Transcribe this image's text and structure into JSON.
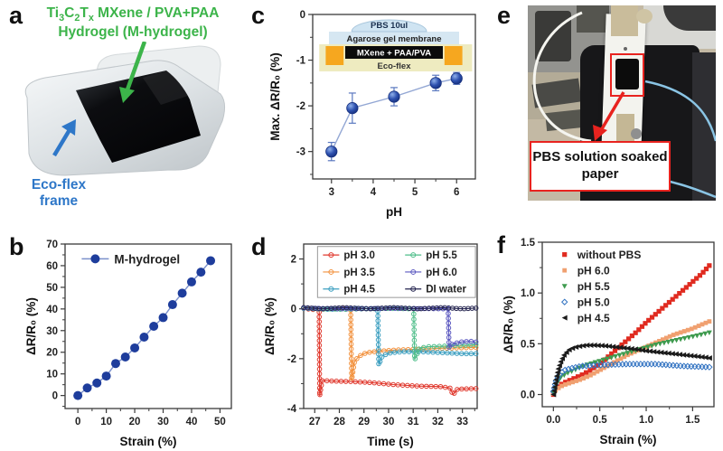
{
  "panels": {
    "a": {
      "label": "a",
      "title_line1_parts": [
        [
          "Ti",
          0
        ],
        [
          "3",
          1
        ],
        [
          "C",
          0
        ],
        [
          "2",
          1
        ],
        [
          "T",
          0
        ],
        [
          "x",
          1
        ],
        [
          " MXene / PVA+PAA",
          0
        ]
      ],
      "title_line2": "Hydrogel (M-hydrogel)",
      "title_color": "#3cb44a",
      "frame_label_line1": "Eco-flex",
      "frame_label_line2": "frame",
      "frame_color": "#2e77c8"
    },
    "b": {
      "label": "b"
    },
    "c": {
      "label": "c"
    },
    "d": {
      "label": "d"
    },
    "e": {
      "label": "e",
      "callout": "PBS solution soaked paper",
      "callout_color": "#e8231f"
    },
    "f": {
      "label": "f"
    }
  },
  "chart_data": [
    {
      "id": "b",
      "type": "line",
      "xlabel": "Strain (%)",
      "ylabel": "ΔR/R₀ (%)",
      "xlim": [
        -4.5,
        54
      ],
      "ylim": [
        -6,
        70
      ],
      "xticks": [
        0,
        10,
        20,
        30,
        40,
        50
      ],
      "yticks": [
        0,
        10,
        20,
        30,
        40,
        50,
        60,
        70
      ],
      "xminor": 5,
      "yminor": 5,
      "xfmt": 0,
      "yfmt": 0,
      "grid": false,
      "legend": {
        "style": "inline"
      },
      "series": [
        {
          "name": "M-hydrogel",
          "color": "#1e3d9c",
          "line": "#7b90cc",
          "marker": "circle",
          "msize": 5,
          "points": [
            [
              0,
              0
            ],
            [
              3.3,
              3.5
            ],
            [
              6.7,
              5.8
            ],
            [
              10,
              9
            ],
            [
              13.3,
              14.8
            ],
            [
              16.7,
              17.8
            ],
            [
              20,
              22
            ],
            [
              23.3,
              27
            ],
            [
              26.7,
              32
            ],
            [
              30,
              36
            ],
            [
              33.3,
              42
            ],
            [
              36.7,
              47.3
            ],
            [
              40,
              52.5
            ],
            [
              43.3,
              57
            ],
            [
              46.7,
              62.3
            ]
          ]
        }
      ]
    },
    {
      "id": "c",
      "type": "line",
      "xlabel": "pH",
      "ylabel": "Max. ΔR/R₀ (%)",
      "xlim": [
        2.55,
        6.45
      ],
      "ylim": [
        -3.6,
        0
      ],
      "xticks": [
        3,
        4,
        5,
        6
      ],
      "yticks": [
        0,
        -1,
        -2,
        -3
      ],
      "xminor": 0.5,
      "yminor": 0.5,
      "xfmt": 0,
      "yfmt": 0,
      "grid": false,
      "series": [
        {
          "name": "Max. response vs pH",
          "color": "#27439e",
          "line": "#93a7d4",
          "marker": "sphere",
          "msize": 6.2,
          "errcolor": "#5b79c0",
          "yerr": [
            0.2,
            0.33,
            0.2,
            0.17,
            0.13
          ],
          "points": [
            [
              3,
              -3.0
            ],
            [
              3.5,
              -2.05
            ],
            [
              4.5,
              -1.8
            ],
            [
              5.5,
              -1.5
            ],
            [
              6,
              -1.4
            ]
          ]
        }
      ],
      "inset": {
        "dome_label": "PBS 10ul",
        "layer_agarose": "Agarose gel membrane",
        "layer_mxene": "MXene + PAA/PVA",
        "layer_ecoflex": "Eco-flex",
        "dome_color": "#cfe4f2",
        "agarose_color": "#d6e7f2",
        "mxene_color": "#0b0b0b",
        "ecoflex_color": "#eeebc0",
        "pad_color": "#f6a71f"
      }
    },
    {
      "id": "d",
      "type": "line",
      "xlabel": "Time (s)",
      "ylabel": "ΔR/R₀ (%)",
      "xlim": [
        26.55,
        33.6
      ],
      "ylim": [
        -4,
        2.6
      ],
      "xticks": [
        27,
        28,
        29,
        30,
        31,
        32,
        33
      ],
      "yticks": [
        -4,
        -2,
        0,
        2
      ],
      "xminor": 0.5,
      "yminor": 1,
      "xfmt": 0,
      "yfmt": 0,
      "grid": false,
      "legend": {
        "style": "box2col",
        "col1": [
          0,
          1,
          2
        ],
        "col2": [
          3,
          4,
          5
        ]
      },
      "series": [
        {
          "name": "pH 3.0",
          "color": "#e03a2f",
          "marker": "circle-open",
          "msize": 2.3,
          "lw": 1.1,
          "nmarkers": 60,
          "points": [
            [
              26.55,
              0.02
            ],
            [
              26.9,
              -0.03
            ],
            [
              27.18,
              0.0
            ],
            [
              27.2,
              -3.5
            ],
            [
              27.3,
              -2.88
            ],
            [
              27.8,
              -2.9
            ],
            [
              28.5,
              -2.92
            ],
            [
              29.3,
              -2.96
            ],
            [
              30.2,
              -3.04
            ],
            [
              31.2,
              -3.1
            ],
            [
              32.1,
              -3.12
            ],
            [
              32.5,
              -3.18
            ],
            [
              32.62,
              -3.45
            ],
            [
              32.8,
              -3.22
            ],
            [
              33.55,
              -3.2
            ]
          ]
        },
        {
          "name": "pH 3.5",
          "color": "#f2913d",
          "marker": "circle-open",
          "msize": 2.3,
          "lw": 1.1,
          "nmarkers": 55,
          "points": [
            [
              26.55,
              0.03
            ],
            [
              27.3,
              -0.02
            ],
            [
              28.1,
              0.02
            ],
            [
              28.46,
              0.0
            ],
            [
              28.5,
              -2.85
            ],
            [
              28.62,
              -2.1
            ],
            [
              28.8,
              -1.9
            ],
            [
              29.1,
              -1.76
            ],
            [
              29.6,
              -1.7
            ],
            [
              30.3,
              -1.65
            ],
            [
              31.2,
              -1.62
            ],
            [
              32.2,
              -1.58
            ],
            [
              33.55,
              -1.55
            ]
          ]
        },
        {
          "name": "pH 4.5",
          "color": "#3c9fc0",
          "marker": "circle-open",
          "msize": 2.3,
          "lw": 1.1,
          "nmarkers": 50,
          "points": [
            [
              26.55,
              0.02
            ],
            [
              27.6,
              -0.02
            ],
            [
              28.7,
              0.02
            ],
            [
              29.56,
              0.0
            ],
            [
              29.6,
              -2.25
            ],
            [
              29.75,
              -1.88
            ],
            [
              30.1,
              -1.76
            ],
            [
              30.6,
              -1.72
            ],
            [
              31.3,
              -1.72
            ],
            [
              32.2,
              -1.76
            ],
            [
              33.0,
              -1.8
            ],
            [
              33.55,
              -1.8
            ]
          ]
        },
        {
          "name": "pH 5.5",
          "color": "#4fbe8a",
          "marker": "circle-open",
          "msize": 2.3,
          "lw": 1.1,
          "nmarkers": 45,
          "points": [
            [
              26.55,
              0.02
            ],
            [
              28.2,
              -0.02
            ],
            [
              29.8,
              0.02
            ],
            [
              31.02,
              0.0
            ],
            [
              31.06,
              -2.05
            ],
            [
              31.25,
              -1.58
            ],
            [
              31.6,
              -1.52
            ],
            [
              32.2,
              -1.5
            ],
            [
              32.8,
              -1.47
            ],
            [
              33.55,
              -1.44
            ]
          ]
        },
        {
          "name": "pH 6.0",
          "color": "#5b58c0",
          "marker": "circle-open",
          "msize": 2.3,
          "lw": 1.1,
          "nmarkers": 45,
          "points": [
            [
              26.55,
              0.03
            ],
            [
              28.3,
              0.0
            ],
            [
              30.2,
              0.02
            ],
            [
              32.42,
              0.0
            ],
            [
              32.46,
              -1.55
            ],
            [
              32.62,
              -1.4
            ],
            [
              32.95,
              -1.33
            ],
            [
              33.3,
              -1.3
            ],
            [
              33.55,
              -1.33
            ]
          ]
        },
        {
          "name": "DI water",
          "color": "#23234e",
          "marker": "circle-open",
          "msize": 2.3,
          "lw": 1.1,
          "nmarkers": 45,
          "points": [
            [
              26.55,
              0.05
            ],
            [
              27.3,
              0.0
            ],
            [
              28.2,
              0.05
            ],
            [
              29.2,
              0.0
            ],
            [
              30.2,
              0.05
            ],
            [
              31.2,
              0.0
            ],
            [
              32.2,
              0.05
            ],
            [
              33.0,
              0.0
            ],
            [
              33.55,
              0.03
            ]
          ]
        }
      ]
    },
    {
      "id": "f",
      "type": "scatter",
      "xlabel": "Strain (%)",
      "ylabel": "ΔR/R₀ (%)",
      "xlim": [
        -0.12,
        1.73
      ],
      "ylim": [
        -0.12,
        1.5
      ],
      "xticks": [
        0,
        0.5,
        1.0,
        1.5
      ],
      "yticks": [
        0,
        0.5,
        1.0,
        1.5
      ],
      "xminor": 0.25,
      "yminor": 0.25,
      "xfmt": 1,
      "yfmt": 1,
      "grid": false,
      "legend": {
        "style": "list"
      },
      "series": [
        {
          "name": "without PBS",
          "color": "#e02b20",
          "marker": "square",
          "msize": 2.6,
          "nmarkers": 46,
          "points": [
            [
              0,
              0
            ],
            [
              0.02,
              0.05
            ],
            [
              0.05,
              0.08
            ],
            [
              0.1,
              0.11
            ],
            [
              0.2,
              0.15
            ],
            [
              0.3,
              0.19
            ],
            [
              0.4,
              0.24
            ],
            [
              0.5,
              0.3
            ],
            [
              0.6,
              0.38
            ],
            [
              0.7,
              0.46
            ],
            [
              0.8,
              0.54
            ],
            [
              0.9,
              0.62
            ],
            [
              1.0,
              0.71
            ],
            [
              1.1,
              0.79
            ],
            [
              1.2,
              0.87
            ],
            [
              1.3,
              0.95
            ],
            [
              1.4,
              1.03
            ],
            [
              1.5,
              1.11
            ],
            [
              1.6,
              1.19
            ],
            [
              1.68,
              1.27
            ]
          ]
        },
        {
          "name": "pH 6.0",
          "color": "#f0a070",
          "marker": "square",
          "msize": 2.4,
          "nmarkers": 46,
          "points": [
            [
              0,
              0.01
            ],
            [
              0.03,
              0.05
            ],
            [
              0.1,
              0.09
            ],
            [
              0.2,
              0.12
            ],
            [
              0.3,
              0.15
            ],
            [
              0.4,
              0.19
            ],
            [
              0.5,
              0.24
            ],
            [
              0.6,
              0.29
            ],
            [
              0.7,
              0.34
            ],
            [
              0.8,
              0.39
            ],
            [
              0.9,
              0.43
            ],
            [
              1.0,
              0.47
            ],
            [
              1.1,
              0.51
            ],
            [
              1.2,
              0.55
            ],
            [
              1.3,
              0.59
            ],
            [
              1.4,
              0.62
            ],
            [
              1.5,
              0.65
            ],
            [
              1.6,
              0.69
            ],
            [
              1.68,
              0.72
            ]
          ]
        },
        {
          "name": "pH 5.5",
          "color": "#3f9b4f",
          "marker": "tri-down",
          "msize": 3,
          "nmarkers": 42,
          "points": [
            [
              0,
              0.02
            ],
            [
              0.03,
              0.1
            ],
            [
              0.08,
              0.17
            ],
            [
              0.15,
              0.21
            ],
            [
              0.25,
              0.25
            ],
            [
              0.35,
              0.29
            ],
            [
              0.5,
              0.33
            ],
            [
              0.65,
              0.37
            ],
            [
              0.8,
              0.41
            ],
            [
              0.95,
              0.45
            ],
            [
              1.1,
              0.49
            ],
            [
              1.25,
              0.52
            ],
            [
              1.4,
              0.55
            ],
            [
              1.55,
              0.58
            ],
            [
              1.68,
              0.61
            ]
          ]
        },
        {
          "name": "pH 5.0",
          "color": "#3273c2",
          "marker": "diamond-open",
          "msize": 3,
          "nmarkers": 48,
          "points": [
            [
              0,
              0.03
            ],
            [
              0.03,
              0.14
            ],
            [
              0.07,
              0.2
            ],
            [
              0.12,
              0.24
            ],
            [
              0.2,
              0.26
            ],
            [
              0.3,
              0.28
            ],
            [
              0.5,
              0.29
            ],
            [
              0.8,
              0.3
            ],
            [
              1.1,
              0.3
            ],
            [
              1.4,
              0.28
            ],
            [
              1.68,
              0.27
            ]
          ]
        },
        {
          "name": "pH 4.5",
          "color": "#1a1a1a",
          "marker": "tri-left",
          "msize": 3,
          "nmarkers": 52,
          "points": [
            [
              0,
              0.0
            ],
            [
              0.02,
              0.12
            ],
            [
              0.05,
              0.25
            ],
            [
              0.08,
              0.33
            ],
            [
              0.12,
              0.4
            ],
            [
              0.18,
              0.45
            ],
            [
              0.25,
              0.47
            ],
            [
              0.35,
              0.485
            ],
            [
              0.45,
              0.485
            ],
            [
              0.55,
              0.48
            ],
            [
              0.7,
              0.465
            ],
            [
              0.85,
              0.45
            ],
            [
              1.0,
              0.43
            ],
            [
              1.15,
              0.415
            ],
            [
              1.3,
              0.4
            ],
            [
              1.45,
              0.385
            ],
            [
              1.6,
              0.37
            ],
            [
              1.68,
              0.36
            ]
          ]
        }
      ]
    }
  ]
}
